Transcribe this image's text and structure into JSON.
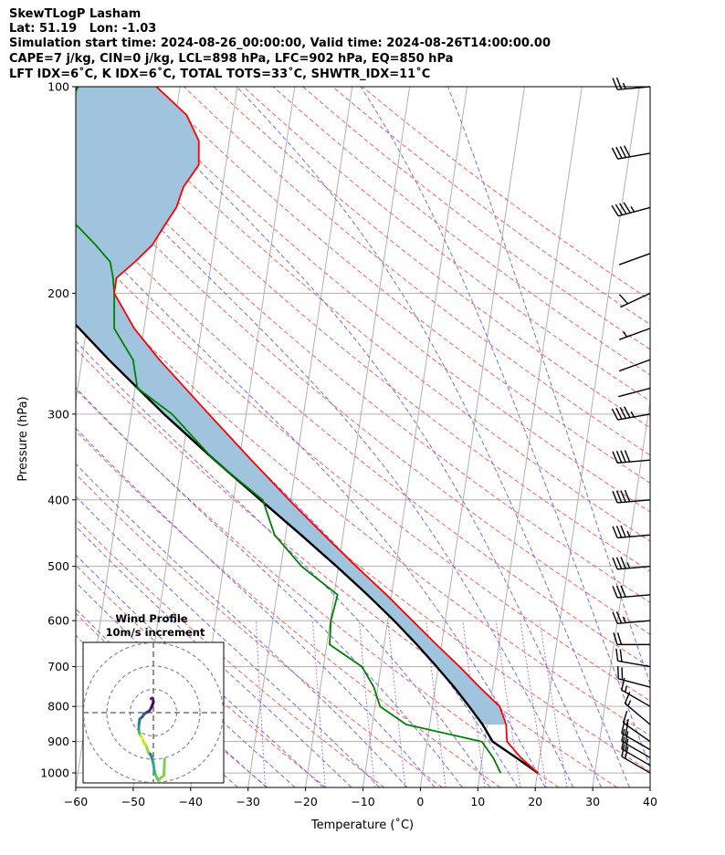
{
  "header": {
    "line1": "SkewTLogP Lasham",
    "line2": "Lat: 51.19   Lon: -1.03",
    "line3": "Simulation start time: 2024-08-26_00:00:00, Valid time: 2024-08-26T14:00:00.00",
    "line4": "CAPE=7 j/kg, CIN=0 j/kg, LCL=898 hPa, LFC=902 hPa, EQ=850 hPa",
    "line5": "LFT IDX=6˚C, K IDX=6˚C, TOTAL TOTS=33˚C, SHWTR_IDX=11˚C"
  },
  "chart_data": {
    "type": "line",
    "xlabel": "Temperature (˚C)",
    "ylabel": "Pressure (hPa)",
    "xlim": [
      -60,
      40
    ],
    "ylim": [
      1050,
      100
    ],
    "y_scale": "log",
    "skew": true,
    "x_ticks": [
      "−60",
      "−50",
      "−40",
      "−30",
      "−20",
      "−10",
      "0",
      "10",
      "20",
      "30",
      "40"
    ],
    "y_ticks": [
      "100",
      "200",
      "300",
      "400",
      "500",
      "600",
      "700",
      "800",
      "900",
      "1000"
    ],
    "colors": {
      "temperature": "#ff0000",
      "dewpoint": "#008000",
      "parcel": "#000000",
      "cape_shade": "#a0c4de",
      "dry_adiabats": "#ff6060",
      "moist_adiabats": "#6f6fff",
      "isotherms": "#b0b0b0",
      "mixing_ratio": "#9b4fcf"
    },
    "series": [
      {
        "key": "temperature",
        "pressure": [
          1000,
          950,
          900,
          850,
          800,
          750,
          700,
          650,
          600,
          550,
          500,
          450,
          400,
          350,
          300,
          250,
          225,
          200,
          190,
          180,
          170,
          160,
          150,
          140,
          130,
          120,
          110,
          100
        ],
        "temp": [
          20.1,
          16.7,
          13.9,
          13.3,
          11.7,
          7.7,
          3.7,
          -0.9,
          -5.7,
          -10.9,
          -16.9,
          -23.3,
          -30.3,
          -37.9,
          -46.5,
          -56.5,
          -61.7,
          -66.1,
          -66.1,
          -63.3,
          -60.7,
          -59.2,
          -57.5,
          -56.8,
          -54.7,
          -55.3,
          -58.1,
          -64.1
        ]
      },
      {
        "key": "dewpoint",
        "pressure": [
          1000,
          950,
          900,
          850,
          800,
          750,
          700,
          650,
          600,
          550,
          500,
          450,
          400,
          350,
          300,
          275,
          250,
          225,
          200,
          190,
          180,
          170,
          160,
          150,
          140,
          130,
          120,
          110,
          100
        ],
        "temp": [
          13.6,
          11.9,
          9.5,
          -4.1,
          -9.1,
          -10.7,
          -13.3,
          -19.5,
          -19.9,
          -19.4,
          -26.4,
          -31.9,
          -34.9,
          -44.4,
          -52.9,
          -59.6,
          -61.1,
          -65.2,
          -66.1,
          -66.7,
          -67.6,
          -70.6,
          -74.1,
          -79.0,
          -82.9,
          -82.4,
          -81.3,
          -79.7,
          -77.7
        ]
      },
      {
        "key": "parcel",
        "pressure": [
          1000,
          950,
          900,
          850,
          800,
          750,
          700,
          650,
          600,
          550,
          500,
          450,
          400,
          350,
          300,
          250,
          200,
          150,
          100
        ],
        "temp": [
          20.1,
          15.9,
          11.4,
          9.2,
          6.4,
          3.3,
          -0.3,
          -4.3,
          -8.9,
          -14.2,
          -20.3,
          -27.3,
          -35.3,
          -44.3,
          -54.3,
          -65.3,
          -78.0,
          -93.0,
          -114.0
        ]
      }
    ],
    "wind_barbs": {
      "pressure": [
        1000,
        975,
        950,
        925,
        900,
        850,
        800,
        750,
        700,
        650,
        600,
        550,
        500,
        450,
        400,
        350,
        300,
        275,
        250,
        225,
        200,
        175,
        150,
        125,
        100
      ],
      "speed_kt": [
        20,
        20,
        20,
        20,
        15,
        15,
        15,
        20,
        20,
        20,
        25,
        30,
        35,
        35,
        40,
        40,
        45,
        50,
        50,
        55,
        60,
        50,
        45,
        40,
        25
      ],
      "direction_deg": [
        300,
        300,
        300,
        300,
        305,
        310,
        300,
        285,
        280,
        270,
        265,
        265,
        265,
        265,
        265,
        265,
        260,
        255,
        250,
        250,
        245,
        250,
        255,
        260,
        265
      ]
    },
    "hodograph": {
      "title": "Wind Profile",
      "subtitle": "10m/s increment",
      "rings_ms": [
        10,
        20,
        30
      ],
      "u": [
        4.8,
        4.5,
        2.0,
        0.6,
        0.0,
        -0.5,
        -1.2,
        -2.2,
        -3.2,
        -4.0,
        -4.8,
        -5.4,
        -6.0,
        -6.3,
        -6.2,
        -5.9,
        -4.8,
        -3.9,
        -3.1,
        -2.3,
        -1.7,
        -1.0,
        -0.4,
        0.0,
        -0.2,
        -0.5,
        -1.0
      ],
      "v": [
        -20.0,
        -27.0,
        -29.0,
        -26.0,
        -22.0,
        -20.0,
        -18.0,
        -17.0,
        -14.0,
        -13.0,
        -11.0,
        -10.0,
        -9.0,
        -7.0,
        -5.0,
        -2.8,
        -1.8,
        -0.5,
        0.0,
        0.4,
        0.8,
        2.0,
        3.4,
        4.5,
        5.8,
        6.3,
        6.0
      ]
    }
  }
}
